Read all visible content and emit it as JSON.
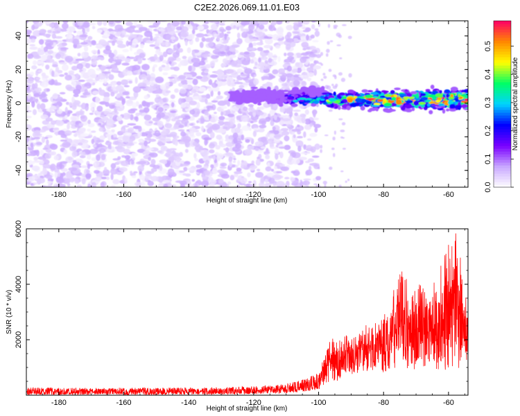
{
  "figure_title": "C2E2.2026.069.11.01.E03",
  "chart_data": [
    {
      "type": "heatmap",
      "title": "C2E2.2026.069.11.01.E03",
      "xlabel": "Height of straight line (km)",
      "ylabel": "Frequency (Hz)",
      "xlim": [
        -190,
        -54
      ],
      "ylim": [
        -50,
        49
      ],
      "xticks": [
        -180,
        -160,
        -140,
        -120,
        -100,
        -80,
        -60
      ],
      "xtick_labels": [
        "-180",
        "-160",
        "-140",
        "-120",
        "-100",
        "-80",
        "-60"
      ],
      "yticks": [
        -40,
        -20,
        0,
        20,
        40
      ],
      "ytick_labels": [
        "-40",
        "-20",
        "0",
        "20",
        "40"
      ],
      "colorbar": {
        "label": "Normalized spectral amplitude",
        "range": [
          0,
          0.59
        ],
        "ticks": [
          0,
          0.1,
          0.2,
          0.3,
          0.4,
          0.5
        ],
        "tick_labels": [
          "0.0",
          "0.1",
          "0.2",
          "0.3",
          "0.4",
          "0.5"
        ],
        "colormap": [
          "#ffffff",
          "#c9a8ff",
          "#7a00ff",
          "#0000ff",
          "#00d4ff",
          "#00ff66",
          "#ffff00",
          "#ff8800",
          "#ff0066"
        ]
      },
      "regions": [
        {
          "name": "noise",
          "x_range": [
            -190,
            -100
          ],
          "freq_range": [
            -50,
            49
          ],
          "amplitude": 0.05
        },
        {
          "name": "signal band",
          "x_range": [
            -127,
            -54
          ],
          "freq_range": [
            -5,
            9
          ],
          "center_freq": 2,
          "peak_amplitude": 0.56
        }
      ]
    },
    {
      "type": "line",
      "xlabel": "Height of straight line (km)",
      "ylabel": "SNR (10 * v/v)",
      "xlim": [
        -190,
        -54
      ],
      "ylim": [
        0,
        6000
      ],
      "xticks": [
        -180,
        -160,
        -140,
        -120,
        -100,
        -80,
        -60
      ],
      "xtick_labels": [
        "-180",
        "-160",
        "-140",
        "-120",
        "-100",
        "-80",
        "-60"
      ],
      "yticks": [
        2000,
        4000,
        6000
      ],
      "ytick_labels": [
        "2000",
        "4000",
        "6000"
      ],
      "series": [
        {
          "name": "SNR",
          "color": "#ff0000",
          "x": [
            -190,
            -180,
            -170,
            -160,
            -150,
            -140,
            -130,
            -120,
            -110,
            -105,
            -100,
            -98,
            -96,
            -94,
            -92,
            -90,
            -88,
            -86,
            -84,
            -82,
            -80,
            -78,
            -76,
            -74,
            -72,
            -70,
            -68,
            -66,
            -64,
            -62,
            -60,
            -58,
            -56,
            -54
          ],
          "envelope_max": [
            280,
            270,
            260,
            270,
            270,
            280,
            290,
            320,
            400,
            560,
            800,
            1600,
            2100,
            2000,
            2200,
            2100,
            2300,
            2700,
            2400,
            2700,
            3100,
            3300,
            4400,
            4700,
            4200,
            3900,
            4200,
            3900,
            4200,
            4800,
            5700,
            6000,
            4900,
            3400
          ],
          "envelope_min": [
            20,
            20,
            20,
            20,
            20,
            20,
            30,
            50,
            80,
            130,
            200,
            400,
            500,
            500,
            600,
            700,
            800,
            800,
            900,
            900,
            800,
            900,
            1000,
            900,
            900,
            900,
            900,
            900,
            900,
            900,
            900,
            900,
            800,
            500
          ]
        }
      ]
    }
  ]
}
